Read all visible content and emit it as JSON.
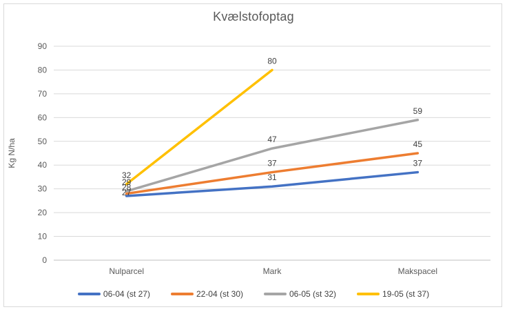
{
  "chart_data": {
    "type": "line",
    "title": "Kvælstofoptag",
    "ylabel": "Kg N/ha",
    "xlabel": "",
    "ylim": [
      0,
      90
    ],
    "ytick_step": 10,
    "grid": true,
    "legend_position": "bottom",
    "data_labels": true,
    "categories": [
      "Nulparcel",
      "Mark",
      "Makspacel"
    ],
    "series": [
      {
        "name": "06-04 (st 27)",
        "color": "#4472C4",
        "values": [
          27,
          31,
          37
        ]
      },
      {
        "name": "22-04 (st 30)",
        "color": "#ED7D31",
        "values": [
          28,
          37,
          45
        ]
      },
      {
        "name": "06-05 (st 32)",
        "color": "#A5A5A5",
        "values": [
          29,
          47,
          59
        ]
      },
      {
        "name": "19-05 (st 37)",
        "color": "#FFC000",
        "values": [
          32,
          80,
          null
        ]
      }
    ]
  },
  "colors": {
    "title_text": "#595959",
    "axis_text": "#595959",
    "data_label_text": "#404040",
    "legend_text": "#404040",
    "gridline": "#D9D9D9",
    "axis_line": "#BFBFBF",
    "chart_border": "#D9D9D9",
    "background": "#FFFFFF"
  }
}
